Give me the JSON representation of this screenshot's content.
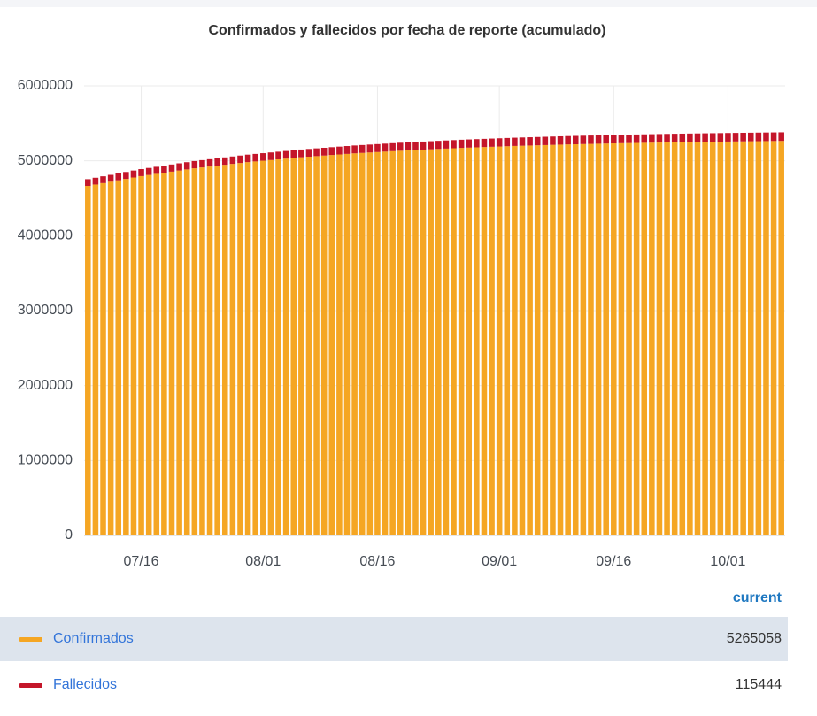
{
  "chart_data": {
    "type": "bar",
    "stacked": true,
    "title": "Confirmados y fallecidos por fecha de reporte (acumulado)",
    "categories": [
      null,
      null,
      null,
      null,
      null,
      null,
      null,
      "07/16",
      null,
      null,
      null,
      null,
      null,
      null,
      null,
      null,
      null,
      null,
      null,
      null,
      null,
      null,
      null,
      "08/01",
      null,
      null,
      null,
      null,
      null,
      null,
      null,
      null,
      null,
      null,
      null,
      null,
      null,
      null,
      "08/16",
      null,
      null,
      null,
      null,
      null,
      null,
      null,
      null,
      null,
      null,
      null,
      null,
      null,
      null,
      null,
      "09/01",
      null,
      null,
      null,
      null,
      null,
      null,
      null,
      null,
      null,
      null,
      null,
      null,
      null,
      null,
      "09/16",
      null,
      null,
      null,
      null,
      null,
      null,
      null,
      null,
      null,
      null,
      null,
      null,
      null,
      null,
      "10/01",
      null,
      null,
      null,
      null,
      null,
      null,
      null
    ],
    "series": [
      {
        "name": "Confirmados",
        "color": "#f5a623",
        "values": [
          4665000,
          4683700,
          4702500,
          4721200,
          4739900,
          4758600,
          4777400,
          4796100,
          4811000,
          4825800,
          4840700,
          4855600,
          4870500,
          4885300,
          4900200,
          4911900,
          4923700,
          4935400,
          4947200,
          4958900,
          4970700,
          4982400,
          4991700,
          5001100,
          5010400,
          5019800,
          5029100,
          5038500,
          5047800,
          5055200,
          5062500,
          5069900,
          5077300,
          5084700,
          5092000,
          5099400,
          5105100,
          5110900,
          5116600,
          5122400,
          5128100,
          5133900,
          5139600,
          5144200,
          5148900,
          5153500,
          5158100,
          5162700,
          5167400,
          5172000,
          5175700,
          5179400,
          5183100,
          5186700,
          5190400,
          5194100,
          5197800,
          5200700,
          5203600,
          5206500,
          5209500,
          5212400,
          5215300,
          5218200,
          5220500,
          5222800,
          5225100,
          5227500,
          5229800,
          5232100,
          5234400,
          5236200,
          5238000,
          5239800,
          5241600,
          5243400,
          5245200,
          5247000,
          5248400,
          5249700,
          5251100,
          5252500,
          5253900,
          5255200,
          5256600,
          5257800,
          5259000,
          5260200,
          5261400,
          5262600,
          5263800,
          5265058
        ]
      },
      {
        "name": "Fallecidos",
        "color": "#c4162a",
        "values": [
          90000,
          90500,
          91000,
          91500,
          92000,
          92500,
          93000,
          93500,
          94000,
          94400,
          94900,
          95400,
          95900,
          96300,
          96800,
          97200,
          97700,
          98100,
          98500,
          98900,
          99400,
          99800,
          100200,
          100600,
          101000,
          101300,
          101700,
          102100,
          102500,
          102800,
          103200,
          103500,
          103900,
          104200,
          104600,
          104900,
          105200,
          105500,
          105800,
          106100,
          106400,
          106700,
          107000,
          107300,
          107500,
          107800,
          108100,
          108400,
          108600,
          108900,
          109100,
          109400,
          109600,
          109800,
          110000,
          110300,
          110500,
          110700,
          110900,
          111100,
          111300,
          111500,
          111700,
          111900,
          112100,
          112200,
          112400,
          112600,
          112800,
          112900,
          113100,
          113200,
          113400,
          113500,
          113700,
          113800,
          114000,
          114100,
          114200,
          114300,
          114400,
          114600,
          114700,
          114800,
          114900,
          115000,
          115100,
          115100,
          115200,
          115300,
          115400,
          115444
        ]
      }
    ],
    "ylim": [
      0,
      6000000
    ],
    "yticks": [
      0,
      1000000,
      2000000,
      3000000,
      4000000,
      5000000,
      6000000
    ],
    "grid": true,
    "legend_header": "current"
  }
}
